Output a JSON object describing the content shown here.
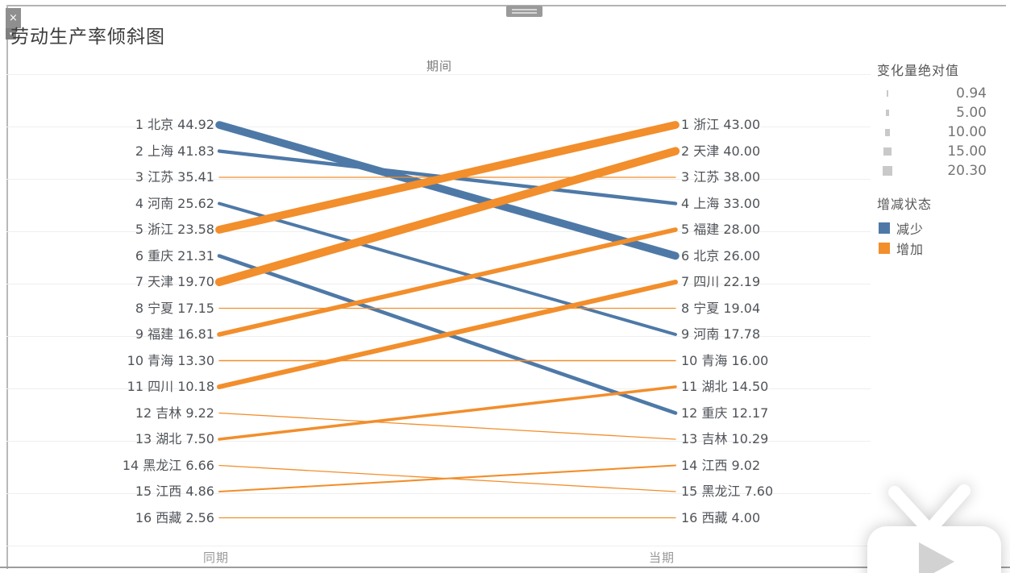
{
  "window": {
    "close_label": "×",
    "dropdown_label": "▾"
  },
  "title": "劳动生产率倾斜图",
  "chart_data": {
    "type": "slope",
    "title": "劳动生产率倾斜图",
    "top_axis_label": "期间",
    "columns": {
      "left": "同期",
      "right": "当期"
    },
    "colors": {
      "decrease": "#4e79a7",
      "increase": "#f28e2b"
    },
    "series": [
      {
        "province": "北京",
        "left_rank": 1,
        "left_value": "44.92",
        "right_rank": 6,
        "right_value": "26.00",
        "change_abs": 18.92,
        "direction": "decrease"
      },
      {
        "province": "上海",
        "left_rank": 2,
        "left_value": "41.83",
        "right_rank": 4,
        "right_value": "33.00",
        "change_abs": 8.83,
        "direction": "decrease"
      },
      {
        "province": "江苏",
        "left_rank": 3,
        "left_value": "35.41",
        "right_rank": 3,
        "right_value": "38.00",
        "change_abs": 2.59,
        "direction": "increase"
      },
      {
        "province": "河南",
        "left_rank": 4,
        "left_value": "25.62",
        "right_rank": 9,
        "right_value": "17.78",
        "change_abs": 7.84,
        "direction": "decrease"
      },
      {
        "province": "浙江",
        "left_rank": 5,
        "left_value": "23.58",
        "right_rank": 1,
        "right_value": "43.00",
        "change_abs": 19.42,
        "direction": "increase"
      },
      {
        "province": "重庆",
        "left_rank": 6,
        "left_value": "21.31",
        "right_rank": 12,
        "right_value": "12.17",
        "change_abs": 9.14,
        "direction": "decrease"
      },
      {
        "province": "天津",
        "left_rank": 7,
        "left_value": "19.70",
        "right_rank": 2,
        "right_value": "40.00",
        "change_abs": 20.3,
        "direction": "increase"
      },
      {
        "province": "宁夏",
        "left_rank": 8,
        "left_value": "17.15",
        "right_rank": 8,
        "right_value": "19.04",
        "change_abs": 1.89,
        "direction": "increase"
      },
      {
        "province": "福建",
        "left_rank": 9,
        "left_value": "16.81",
        "right_rank": 5,
        "right_value": "28.00",
        "change_abs": 11.19,
        "direction": "increase"
      },
      {
        "province": "青海",
        "left_rank": 10,
        "left_value": "13.30",
        "right_rank": 10,
        "right_value": "16.00",
        "change_abs": 2.7,
        "direction": "increase"
      },
      {
        "province": "四川",
        "left_rank": 11,
        "left_value": "10.18",
        "right_rank": 7,
        "right_value": "22.19",
        "change_abs": 12.01,
        "direction": "increase"
      },
      {
        "province": "吉林",
        "left_rank": 12,
        "left_value": "9.22",
        "right_rank": 13,
        "right_value": "10.29",
        "change_abs": 1.07,
        "direction": "increase"
      },
      {
        "province": "湖北",
        "left_rank": 13,
        "left_value": "7.50",
        "right_rank": 11,
        "right_value": "14.50",
        "change_abs": 7.0,
        "direction": "increase"
      },
      {
        "province": "黑龙江",
        "left_rank": 14,
        "left_value": "6.66",
        "right_rank": 15,
        "right_value": "7.60",
        "change_abs": 0.94,
        "direction": "increase"
      },
      {
        "province": "江西",
        "left_rank": 15,
        "left_value": "4.86",
        "right_rank": 14,
        "right_value": "9.02",
        "change_abs": 4.16,
        "direction": "increase"
      },
      {
        "province": "西藏",
        "left_rank": 16,
        "left_value": "2.56",
        "right_rank": 16,
        "right_value": "4.00",
        "change_abs": 1.44,
        "direction": "increase"
      }
    ]
  },
  "legend": {
    "size": {
      "title": "变化量绝对值",
      "items": [
        {
          "value": 0.94,
          "label": "0.94"
        },
        {
          "value": 5.0,
          "label": "5.00"
        },
        {
          "value": 10.0,
          "label": "10.00"
        },
        {
          "value": 15.0,
          "label": "15.00"
        },
        {
          "value": 20.3,
          "label": "20.30"
        }
      ]
    },
    "status": {
      "title": "增减状态",
      "items": [
        {
          "label": "减少",
          "color": "#4e79a7",
          "key": "decrease"
        },
        {
          "label": "增加",
          "color": "#f28e2b",
          "key": "increase"
        }
      ]
    }
  }
}
